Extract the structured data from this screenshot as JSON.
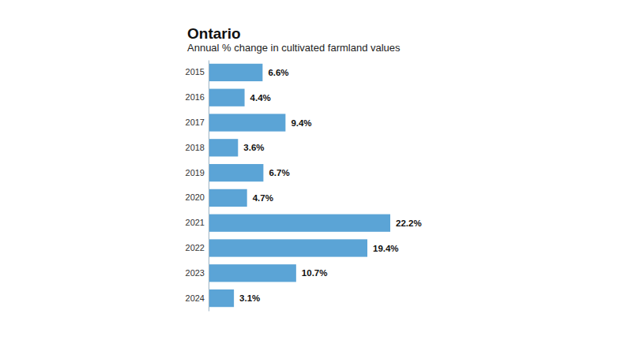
{
  "chart_data": {
    "type": "bar",
    "orientation": "horizontal",
    "title": "Ontario",
    "subtitle": "Annual % change in cultivated farmland values",
    "categories": [
      "2015",
      "2016",
      "2017",
      "2018",
      "2019",
      "2020",
      "2021",
      "2022",
      "2023",
      "2024"
    ],
    "values": [
      6.6,
      4.4,
      9.4,
      3.6,
      6.7,
      4.7,
      22.2,
      19.4,
      10.7,
      3.1
    ],
    "value_labels": [
      "6.6%",
      "4.4%",
      "9.4%",
      "3.6%",
      "6.7%",
      "4.7%",
      "22.2%",
      "19.4%",
      "10.7%",
      "3.1%"
    ],
    "color": "#5ba4d6",
    "xlim": [
      0,
      22.2
    ],
    "data_labels": true,
    "tick_labels": "y",
    "grid": false
  }
}
